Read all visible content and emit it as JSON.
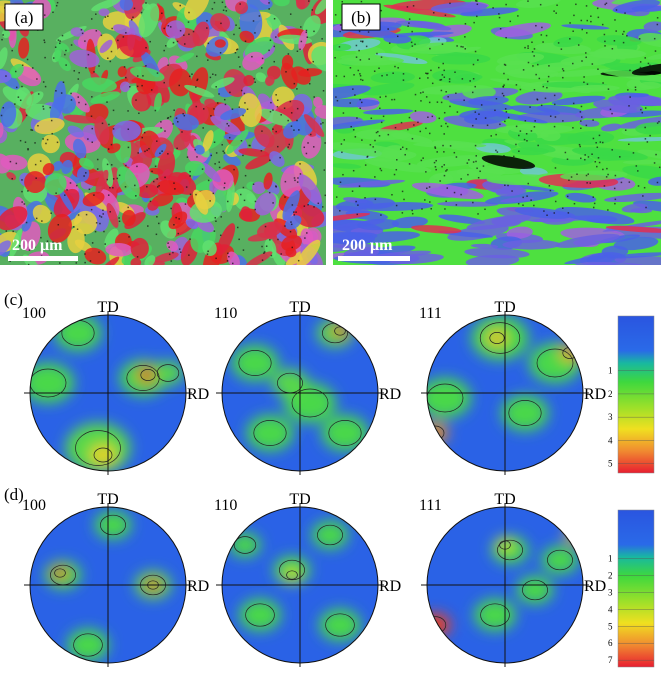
{
  "panels": [
    {
      "label": "(a)",
      "scale_bar": "200 μm"
    },
    {
      "label": "(b)",
      "scale_bar": "200 μm"
    }
  ],
  "pole_figure_rows": [
    {
      "label": "(c)",
      "figures": [
        {
          "plane": "100",
          "top": "TD",
          "right": "RD"
        },
        {
          "plane": "110",
          "top": "TD",
          "right": "RD"
        },
        {
          "plane": "111",
          "top": "TD",
          "right": "RD"
        }
      ],
      "colorbar": [
        "1",
        "2",
        "3",
        "4",
        "5"
      ]
    },
    {
      "label": "(d)",
      "figures": [
        {
          "plane": "100",
          "top": "TD",
          "right": "RD"
        },
        {
          "plane": "110",
          "top": "TD",
          "right": "RD"
        },
        {
          "plane": "111",
          "top": "TD",
          "right": "RD"
        }
      ],
      "colorbar": [
        "1",
        "2",
        "3",
        "4",
        "5",
        "6",
        "7"
      ]
    }
  ]
}
